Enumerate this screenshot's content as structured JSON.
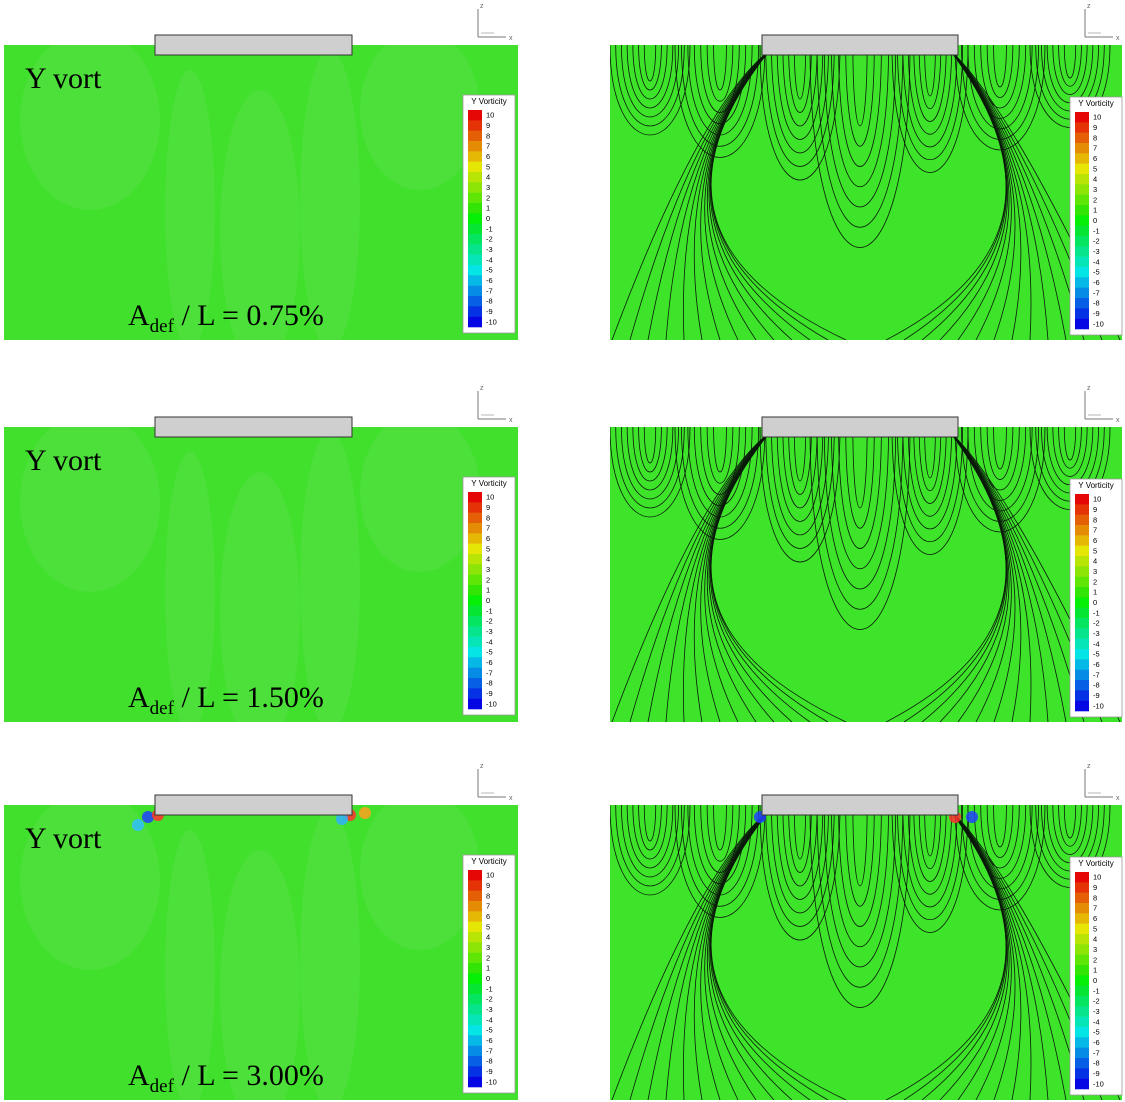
{
  "panels": [
    {
      "label": "Y vort",
      "caption": {
        "main": "A",
        "sub": "def",
        "rest": " / L = 0.75%"
      }
    },
    {
      "label": "Y vort",
      "caption": {
        "main": "A",
        "sub": "def",
        "rest": " / L = 1.50%"
      }
    },
    {
      "label": "Y vort",
      "caption": {
        "main": "A",
        "sub": "def",
        "rest": " / L = 3.00%"
      }
    }
  ],
  "colorbar": {
    "title": "Y Vorticity",
    "ticks": [
      10,
      9,
      8,
      7,
      6,
      5,
      4,
      3,
      2,
      1,
      0,
      -1,
      -2,
      -3,
      -4,
      -5,
      -6,
      -7,
      -8,
      -9,
      -10
    ]
  },
  "triad": {
    "vertical": "z",
    "horizontal": "x"
  }
}
